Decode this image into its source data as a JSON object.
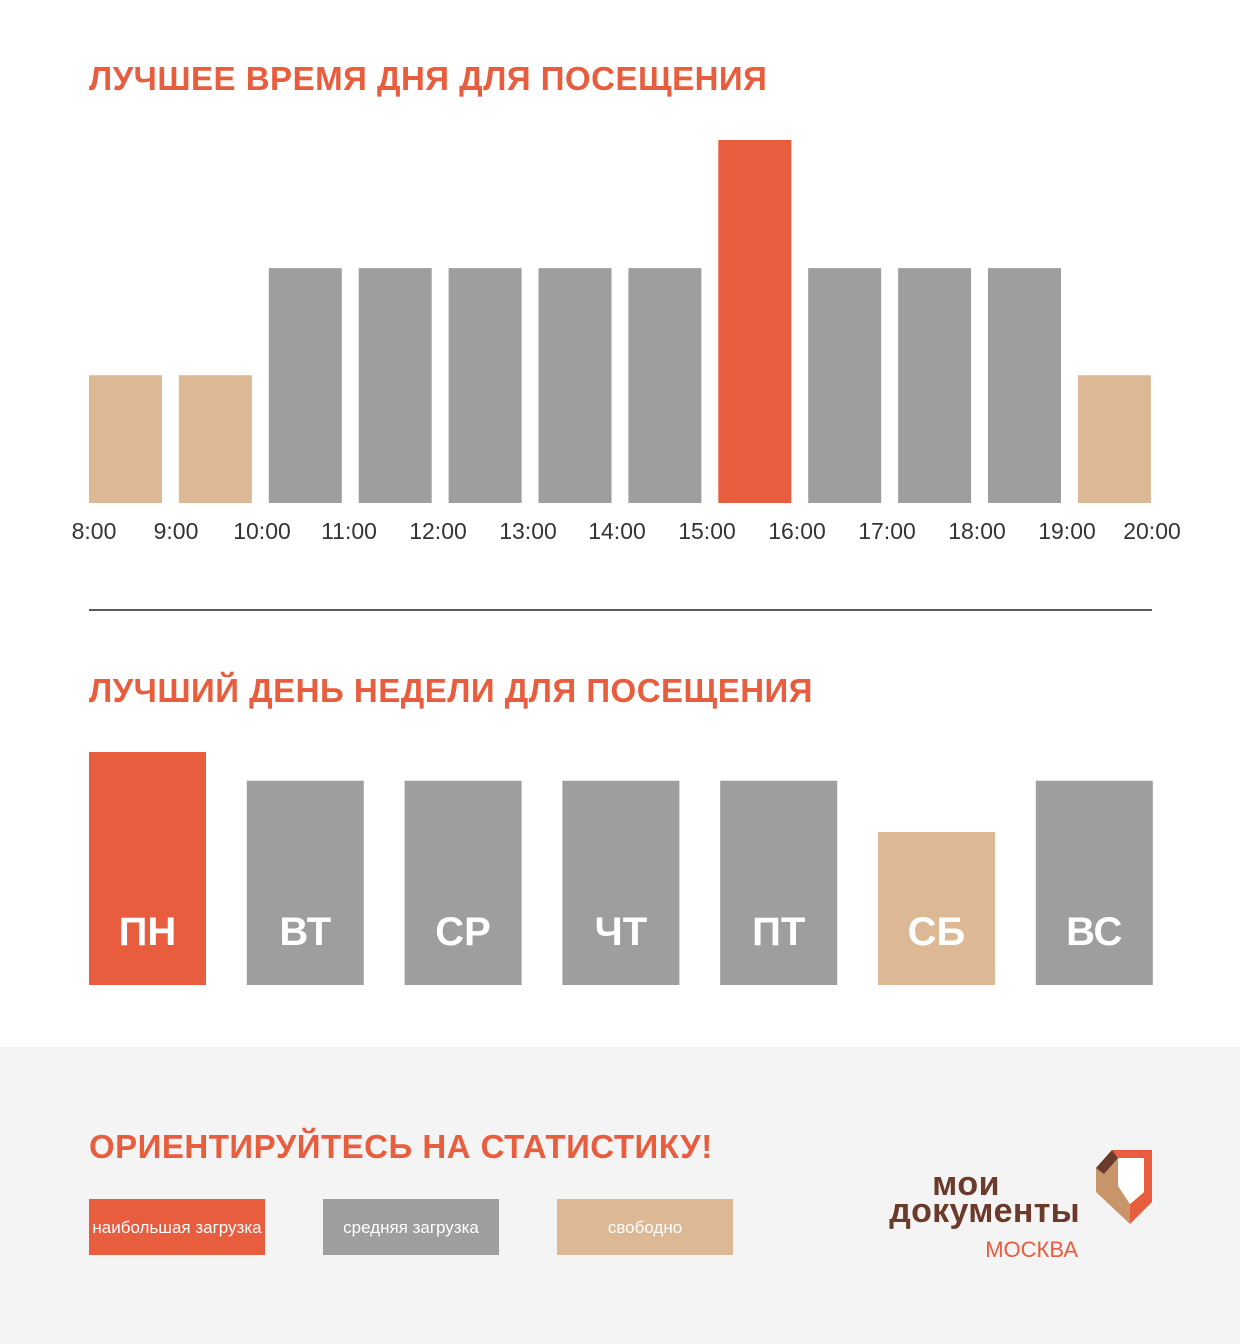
{
  "colors": {
    "accent": "#e85d3e",
    "medium": "#9e9e9e",
    "free": "#dcb994",
    "text_dark": "#333333",
    "brand_brown": "#6b3a2a",
    "footer_bg": "#f4f4f4"
  },
  "hours_section": {
    "title": "ЛУЧШЕЕ ВРЕМЯ ДНЯ ДЛЯ ПОСЕЩЕНИЯ"
  },
  "days_section": {
    "title": "ЛУЧШИЙ ДЕНЬ НЕДЕЛИ ДЛЯ ПОСЕЩЕНИЯ"
  },
  "chart_data": [
    {
      "type": "bar",
      "title": "ЛУЧШЕЕ ВРЕМЯ ДНЯ ДЛЯ ПОСЕЩЕНИЯ",
      "tick_labels": [
        "8:00",
        "9:00",
        "10:00",
        "11:00",
        "12:00",
        "13:00",
        "14:00",
        "15:00",
        "16:00",
        "17:00",
        "18:00",
        "19:00",
        "20:00"
      ],
      "intervals": [
        "8:00–9:00",
        "9:00–10:00",
        "10:00–11:00",
        "11:00–12:00",
        "12:00–13:00",
        "13:00–14:00",
        "14:00–15:00",
        "15:00–16:00",
        "16:00–17:00",
        "17:00–18:00",
        "18:00–19:00",
        "19:00–20:00"
      ],
      "values": [
        1,
        1,
        2,
        2,
        2,
        2,
        2,
        3,
        2,
        2,
        2,
        1
      ],
      "levels": [
        "free",
        "free",
        "medium",
        "medium",
        "medium",
        "medium",
        "medium",
        "high",
        "medium",
        "medium",
        "medium",
        "free"
      ],
      "ylim": [
        0,
        3
      ],
      "grid": false
    },
    {
      "type": "bar",
      "title": "ЛУЧШИЙ ДЕНЬ НЕДЕЛИ ДЛЯ ПОСЕЩЕНИЯ",
      "categories": [
        "ПН",
        "ВТ",
        "СР",
        "ЧТ",
        "ПТ",
        "СБ",
        "ВС"
      ],
      "values": [
        3,
        2.63,
        2.63,
        2.63,
        2.63,
        1.97,
        2.63
      ],
      "levels": [
        "high",
        "medium",
        "medium",
        "medium",
        "medium",
        "free",
        "medium"
      ],
      "ylim": [
        0,
        3
      ],
      "grid": false
    }
  ],
  "footer": {
    "title": "ОРИЕНТИРУЙТЕСЬ НА СТАТИСТИКУ!",
    "legend": [
      {
        "key": "high",
        "label": "наибольшая загрузка",
        "color": "#e85d3e"
      },
      {
        "key": "medium",
        "label": "средняя загрузка",
        "color": "#9e9e9e"
      },
      {
        "key": "free",
        "label": "свободно",
        "color": "#dcb994"
      }
    ]
  },
  "logo": {
    "line1": "мои",
    "line2": "документы",
    "line3": "МОСКВА"
  }
}
